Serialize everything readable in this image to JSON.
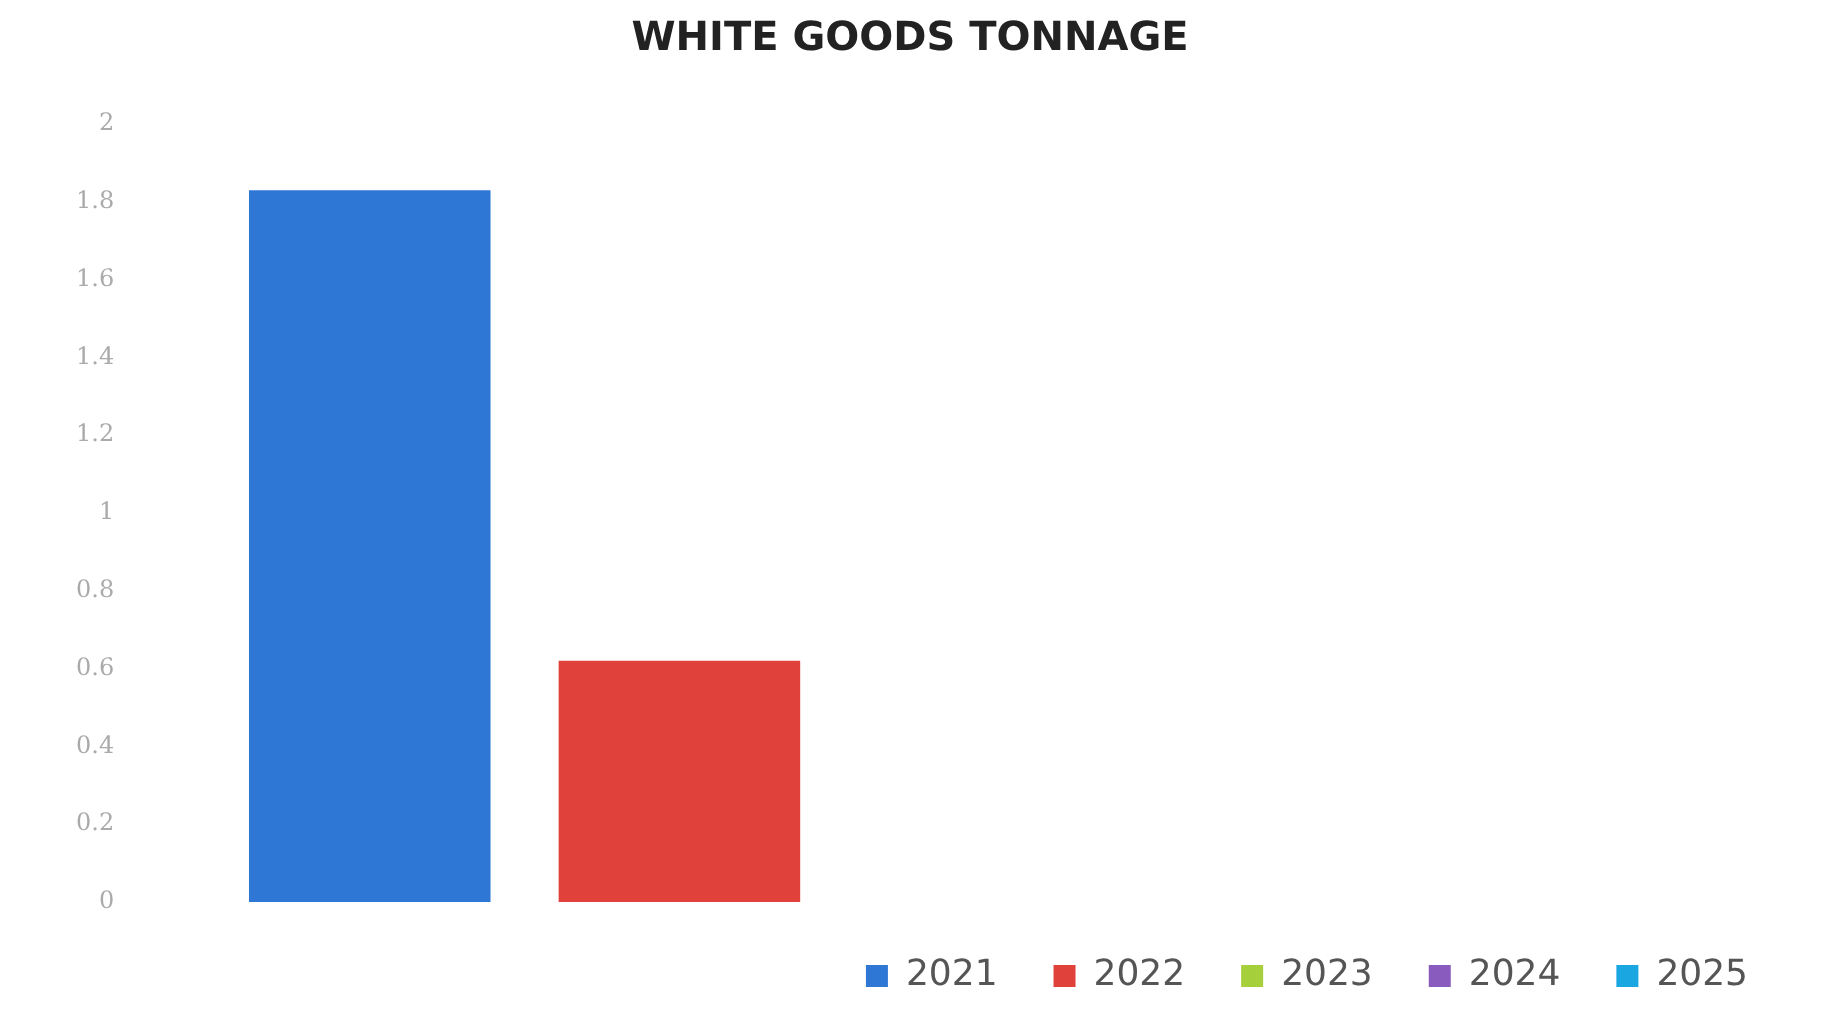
{
  "chart_data": {
    "type": "bar",
    "title": "WHITE GOODS TONNAGE",
    "categories": [
      null
    ],
    "series": [
      {
        "name": "2021",
        "color": "#2f77d4",
        "values": [
          1.83
        ]
      },
      {
        "name": "2022",
        "color": "#e0413b",
        "values": [
          0.62
        ]
      },
      {
        "name": "2023",
        "color": "#a6cf3c",
        "values": [
          null
        ]
      },
      {
        "name": "2024",
        "color": "#8a5bbf",
        "values": [
          null
        ]
      },
      {
        "name": "2025",
        "color": "#1aa6e0",
        "values": [
          null
        ]
      }
    ],
    "ylim": [
      0,
      2
    ],
    "yticks": [
      0,
      0.2,
      0.4,
      0.6,
      0.8,
      1,
      1.2,
      1.4,
      1.6,
      1.8,
      2
    ],
    "grid": false,
    "legend": "bottom right"
  }
}
